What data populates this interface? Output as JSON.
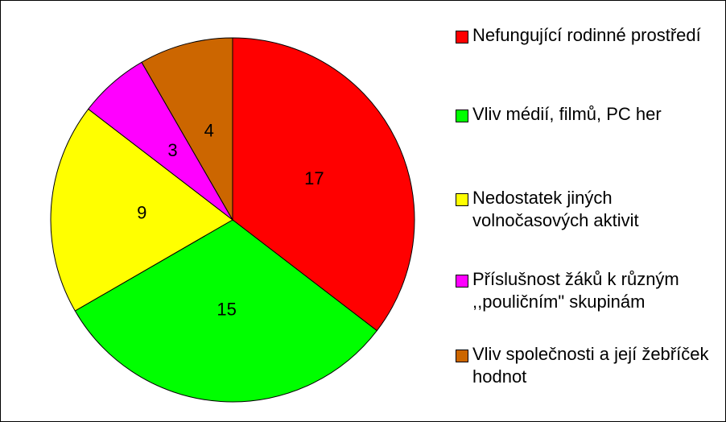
{
  "chart_data": {
    "type": "pie",
    "categories": [
      "Nefungující rodinné prostředí",
      "Vliv médií, filmů, PC her",
      "Nedostatek jiných volnočasových aktivit",
      "Příslušnost žáků k různým ,,pouličním\" skupinám",
      "Vliv společnosti a její žebříček hodnot"
    ],
    "values": [
      17,
      15,
      9,
      3,
      4
    ],
    "colors": [
      "#ff0000",
      "#00ff00",
      "#ffff00",
      "#ff00ff",
      "#cc6600"
    ],
    "legend": "right"
  }
}
